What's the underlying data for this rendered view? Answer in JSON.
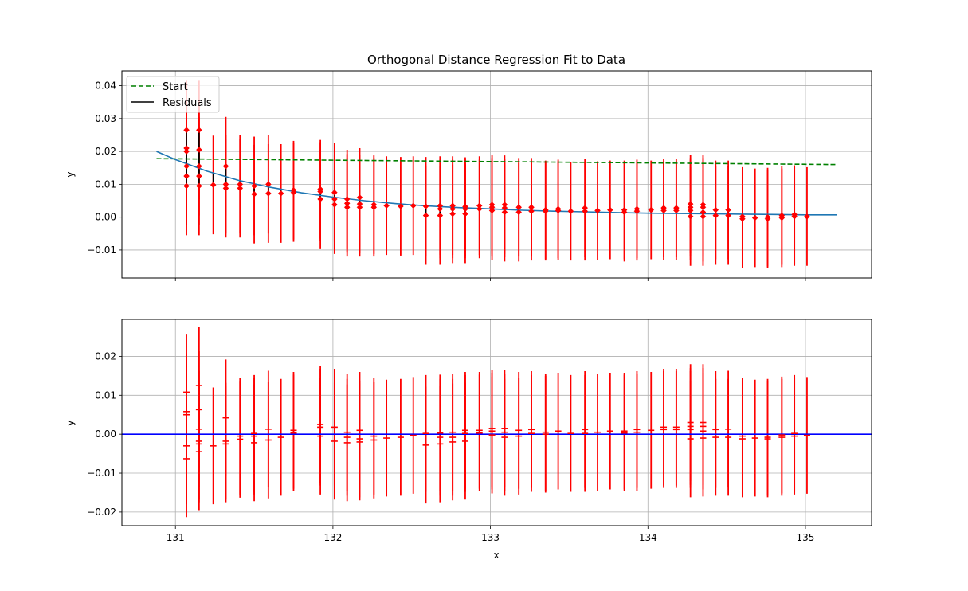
{
  "figure": {
    "title": "Orthogonal Distance Regression Fit to Data"
  },
  "chart_data": [
    {
      "type": "scatter",
      "panel": "top",
      "title": "Orthogonal Distance Regression Fit to Data",
      "xlabel": "",
      "ylabel": "y",
      "xlim": [
        130.66,
        135.42
      ],
      "ylim": [
        -0.0185,
        0.0445
      ],
      "yticks": [
        -0.01,
        0.0,
        0.01,
        0.02,
        0.03,
        0.04
      ],
      "ytick_labels": [
        "−0.01",
        "0.00",
        "0.01",
        "0.02",
        "0.03",
        "0.04"
      ],
      "grid": true,
      "legend": {
        "placement": "upper left",
        "entries": [
          "Start",
          "Residuals"
        ]
      },
      "colors": {
        "data": "#ff0000",
        "fit": "#1f77b4",
        "start": "#008000",
        "residuals": "#000000"
      },
      "points": [
        {
          "x": 131.07,
          "ys": [
            0.0265,
            0.021,
            0.02,
            0.0155,
            0.0125,
            0.0095
          ],
          "err": 0.015
        },
        {
          "x": 131.15,
          "ys": [
            0.0265,
            0.0205,
            0.0155,
            0.0125,
            0.0095
          ],
          "err": 0.015
        },
        {
          "x": 131.24,
          "ys": [
            0.0098
          ],
          "err": 0.015
        },
        {
          "x": 131.32,
          "ys": [
            0.0155,
            0.01,
            0.0088
          ],
          "err": 0.015
        },
        {
          "x": 131.41,
          "ys": [
            0.01,
            0.0088
          ],
          "err": 0.015
        },
        {
          "x": 131.5,
          "ys": [
            0.0095,
            0.007
          ],
          "err": 0.015
        },
        {
          "x": 131.59,
          "ys": [
            0.01,
            0.0072
          ],
          "err": 0.015
        },
        {
          "x": 131.67,
          "ys": [
            0.0072
          ],
          "err": 0.015
        },
        {
          "x": 131.75,
          "ys": [
            0.0082,
            0.0075
          ],
          "err": 0.015
        },
        {
          "x": 131.92,
          "ys": [
            0.0085,
            0.0078,
            0.0055
          ],
          "err": 0.015
        },
        {
          "x": 132.01,
          "ys": [
            0.0075,
            0.0055,
            0.0038
          ],
          "err": 0.015
        },
        {
          "x": 132.09,
          "ys": [
            0.0055,
            0.0042,
            0.003
          ],
          "err": 0.015
        },
        {
          "x": 132.17,
          "ys": [
            0.006,
            0.004,
            0.003
          ],
          "err": 0.015
        },
        {
          "x": 132.26,
          "ys": [
            0.0038,
            0.003
          ],
          "err": 0.015
        },
        {
          "x": 132.34,
          "ys": [
            0.0035
          ],
          "err": 0.015
        },
        {
          "x": 132.43,
          "ys": [
            0.0033
          ],
          "err": 0.015
        },
        {
          "x": 132.51,
          "ys": [
            0.0035
          ],
          "err": 0.015
        },
        {
          "x": 132.59,
          "ys": [
            0.0033,
            0.0005
          ],
          "err": 0.015
        },
        {
          "x": 132.68,
          "ys": [
            0.0035,
            0.0025,
            0.0005
          ],
          "err": 0.015
        },
        {
          "x": 132.76,
          "ys": [
            0.0035,
            0.0025,
            0.001
          ],
          "err": 0.015
        },
        {
          "x": 132.84,
          "ys": [
            0.0032,
            0.0025,
            0.001
          ],
          "err": 0.015
        },
        {
          "x": 132.93,
          "ys": [
            0.0035,
            0.0025
          ],
          "err": 0.015
        },
        {
          "x": 133.01,
          "ys": [
            0.0038,
            0.003,
            0.002
          ],
          "err": 0.015
        },
        {
          "x": 133.09,
          "ys": [
            0.0038,
            0.0028,
            0.0015
          ],
          "err": 0.015
        },
        {
          "x": 133.18,
          "ys": [
            0.003,
            0.0015
          ],
          "err": 0.015
        },
        {
          "x": 133.26,
          "ys": [
            0.003,
            0.0018
          ],
          "err": 0.015
        },
        {
          "x": 133.35,
          "ys": [
            0.0022,
            0.0018
          ],
          "err": 0.015
        },
        {
          "x": 133.43,
          "ys": [
            0.0025,
            0.002
          ],
          "err": 0.015
        },
        {
          "x": 133.51,
          "ys": [
            0.0018
          ],
          "err": 0.015
        },
        {
          "x": 133.6,
          "ys": [
            0.0028,
            0.0018
          ],
          "err": 0.015
        },
        {
          "x": 133.68,
          "ys": [
            0.002
          ],
          "err": 0.015
        },
        {
          "x": 133.76,
          "ys": [
            0.0022
          ],
          "err": 0.015
        },
        {
          "x": 133.85,
          "ys": [
            0.0022,
            0.0015
          ],
          "err": 0.015
        },
        {
          "x": 133.93,
          "ys": [
            0.0025,
            0.0018
          ],
          "err": 0.015
        },
        {
          "x": 134.02,
          "ys": [
            0.0022
          ],
          "err": 0.015
        },
        {
          "x": 134.1,
          "ys": [
            0.0028,
            0.002
          ],
          "err": 0.015
        },
        {
          "x": 134.18,
          "ys": [
            0.0028,
            0.002
          ],
          "err": 0.015
        },
        {
          "x": 134.27,
          "ys": [
            0.004,
            0.003,
            0.002,
            0.0002
          ],
          "err": 0.015
        },
        {
          "x": 134.35,
          "ys": [
            0.0038,
            0.003,
            0.0015,
            0.0002
          ],
          "err": 0.015
        },
        {
          "x": 134.43,
          "ys": [
            0.0022,
            0.0005
          ],
          "err": 0.015
        },
        {
          "x": 134.51,
          "ys": [
            0.0022,
            0.0005
          ],
          "err": 0.015
        },
        {
          "x": 134.6,
          "ys": [
            0.0002,
            -0.0005
          ],
          "err": 0.015
        },
        {
          "x": 134.68,
          "ys": [
            -0.0002
          ],
          "err": 0.015
        },
        {
          "x": 134.76,
          "ys": [
            0.0,
            -0.0005
          ],
          "err": 0.015
        },
        {
          "x": 134.85,
          "ys": [
            0.0005,
            -0.0002
          ],
          "err": 0.015
        },
        {
          "x": 134.93,
          "ys": [
            0.0008,
            0.0002
          ],
          "err": 0.015
        },
        {
          "x": 135.01,
          "ys": [
            0.0002
          ],
          "err": 0.015
        }
      ],
      "fit": {
        "x": [
          130.88,
          131.0,
          131.2,
          131.4,
          131.6,
          131.8,
          132.0,
          132.2,
          132.4,
          132.6,
          132.8,
          133.0,
          133.2,
          133.4,
          133.6,
          133.8,
          134.0,
          134.2,
          134.4,
          134.6,
          134.8,
          135.0,
          135.2
        ],
        "y": [
          0.02,
          0.0175,
          0.014,
          0.0112,
          0.0091,
          0.0074,
          0.0061,
          0.005,
          0.0041,
          0.0034,
          0.0029,
          0.0025,
          0.0021,
          0.0018,
          0.0016,
          0.0014,
          0.0012,
          0.0011,
          0.001,
          0.0009,
          0.0008,
          0.0007,
          0.0007
        ]
      },
      "start": {
        "x": [
          130.88,
          135.2
        ],
        "y": [
          0.0178,
          0.016
        ]
      }
    },
    {
      "type": "scatter",
      "panel": "bottom",
      "xlabel": "x",
      "ylabel": "y",
      "xlim": [
        130.66,
        135.42
      ],
      "ylim": [
        -0.0235,
        0.0295
      ],
      "xticks": [
        131,
        132,
        133,
        134,
        135
      ],
      "xtick_labels": [
        "131",
        "132",
        "133",
        "134",
        "135"
      ],
      "yticks": [
        -0.02,
        -0.01,
        0.0,
        0.01,
        0.02
      ],
      "ytick_labels": [
        "−0.02",
        "−0.01",
        "0.00",
        "0.01",
        "0.02"
      ],
      "grid": true,
      "zero_line": 0.0,
      "colors": {
        "residual": "#ff0000",
        "zero_line": "#0000ff"
      },
      "residuals": [
        {
          "x": 131.07,
          "ys": [
            0.0108,
            0.0058,
            0.005,
            -0.003,
            -0.0063
          ],
          "err": 0.015
        },
        {
          "x": 131.15,
          "ys": [
            0.0125,
            0.0063,
            0.0013,
            -0.0018,
            -0.0025,
            -0.0045
          ],
          "err": 0.015
        },
        {
          "x": 131.24,
          "ys": [
            -0.003
          ],
          "err": 0.015
        },
        {
          "x": 131.32,
          "ys": [
            0.0042,
            -0.0018,
            -0.0025
          ],
          "err": 0.015
        },
        {
          "x": 131.41,
          "ys": [
            -0.0005,
            -0.0013
          ],
          "err": 0.015
        },
        {
          "x": 131.5,
          "ys": [
            0.0002,
            -0.0005,
            -0.0022
          ],
          "err": 0.015
        },
        {
          "x": 131.59,
          "ys": [
            0.0013,
            -0.0015
          ],
          "err": 0.015
        },
        {
          "x": 131.67,
          "ys": [
            -0.0008
          ],
          "err": 0.015
        },
        {
          "x": 131.75,
          "ys": [
            0.001,
            0.0003
          ],
          "err": 0.015
        },
        {
          "x": 131.92,
          "ys": [
            0.0025,
            0.0018,
            -0.0005
          ],
          "err": 0.015
        },
        {
          "x": 132.01,
          "ys": [
            0.0018,
            -0.0018
          ],
          "err": 0.015
        },
        {
          "x": 132.09,
          "ys": [
            0.0005,
            -0.0008,
            -0.0022
          ],
          "err": 0.015
        },
        {
          "x": 132.17,
          "ys": [
            0.001,
            -0.0012,
            -0.002
          ],
          "err": 0.015
        },
        {
          "x": 132.26,
          "ys": [
            -0.0005,
            -0.0015
          ],
          "err": 0.015
        },
        {
          "x": 132.34,
          "ys": [
            -0.001
          ],
          "err": 0.015
        },
        {
          "x": 132.43,
          "ys": [
            -0.0008
          ],
          "err": 0.015
        },
        {
          "x": 132.51,
          "ys": [
            -0.0003
          ],
          "err": 0.015
        },
        {
          "x": 132.59,
          "ys": [
            0.0002,
            -0.0028
          ],
          "err": 0.015
        },
        {
          "x": 132.68,
          "ys": [
            0.0003,
            -0.0008,
            -0.0025
          ],
          "err": 0.015
        },
        {
          "x": 132.76,
          "ys": [
            0.0005,
            -0.0008,
            -0.002
          ],
          "err": 0.015
        },
        {
          "x": 132.84,
          "ys": [
            0.001,
            0.0002,
            -0.0018
          ],
          "err": 0.015
        },
        {
          "x": 132.93,
          "ys": [
            0.001,
            0.0003
          ],
          "err": 0.015
        },
        {
          "x": 133.01,
          "ys": [
            0.0015,
            0.0008,
            -0.0002
          ],
          "err": 0.015
        },
        {
          "x": 133.09,
          "ys": [
            0.0015,
            0.0005,
            -0.0008
          ],
          "err": 0.015
        },
        {
          "x": 133.18,
          "ys": [
            0.001,
            -0.0005
          ],
          "err": 0.015
        },
        {
          "x": 133.26,
          "ys": [
            0.0012,
            0.0002
          ],
          "err": 0.015
        },
        {
          "x": 133.35,
          "ys": [
            0.0005,
            0.0
          ],
          "err": 0.015
        },
        {
          "x": 133.43,
          "ys": [
            0.0008
          ],
          "err": 0.015
        },
        {
          "x": 133.51,
          "ys": [
            0.0002
          ],
          "err": 0.015
        },
        {
          "x": 133.6,
          "ys": [
            0.0012,
            0.0002
          ],
          "err": 0.015
        },
        {
          "x": 133.68,
          "ys": [
            0.0005
          ],
          "err": 0.015
        },
        {
          "x": 133.76,
          "ys": [
            0.0008
          ],
          "err": 0.015
        },
        {
          "x": 133.85,
          "ys": [
            0.0008,
            0.0003
          ],
          "err": 0.015
        },
        {
          "x": 133.93,
          "ys": [
            0.0012,
            0.0005
          ],
          "err": 0.015
        },
        {
          "x": 134.02,
          "ys": [
            0.001
          ],
          "err": 0.015
        },
        {
          "x": 134.1,
          "ys": [
            0.0018,
            0.0012
          ],
          "err": 0.015
        },
        {
          "x": 134.18,
          "ys": [
            0.0018,
            0.0012
          ],
          "err": 0.015
        },
        {
          "x": 134.27,
          "ys": [
            0.003,
            0.002,
            0.0012,
            -0.0012
          ],
          "err": 0.015
        },
        {
          "x": 134.35,
          "ys": [
            0.003,
            0.002,
            0.0008,
            -0.001
          ],
          "err": 0.015
        },
        {
          "x": 134.43,
          "ys": [
            0.0012,
            -0.0008
          ],
          "err": 0.015
        },
        {
          "x": 134.51,
          "ys": [
            0.0013,
            -0.0008
          ],
          "err": 0.015
        },
        {
          "x": 134.6,
          "ys": [
            -0.0005,
            -0.0012
          ],
          "err": 0.015
        },
        {
          "x": 134.68,
          "ys": [
            -0.001
          ],
          "err": 0.015
        },
        {
          "x": 134.76,
          "ys": [
            -0.0008,
            -0.0012
          ],
          "err": 0.015
        },
        {
          "x": 134.85,
          "ys": [
            -0.0002,
            -0.0008
          ],
          "err": 0.015
        },
        {
          "x": 134.93,
          "ys": [
            0.0002,
            -0.0005
          ],
          "err": 0.015
        },
        {
          "x": 135.01,
          "ys": [
            -0.0003
          ],
          "err": 0.015
        }
      ]
    }
  ]
}
